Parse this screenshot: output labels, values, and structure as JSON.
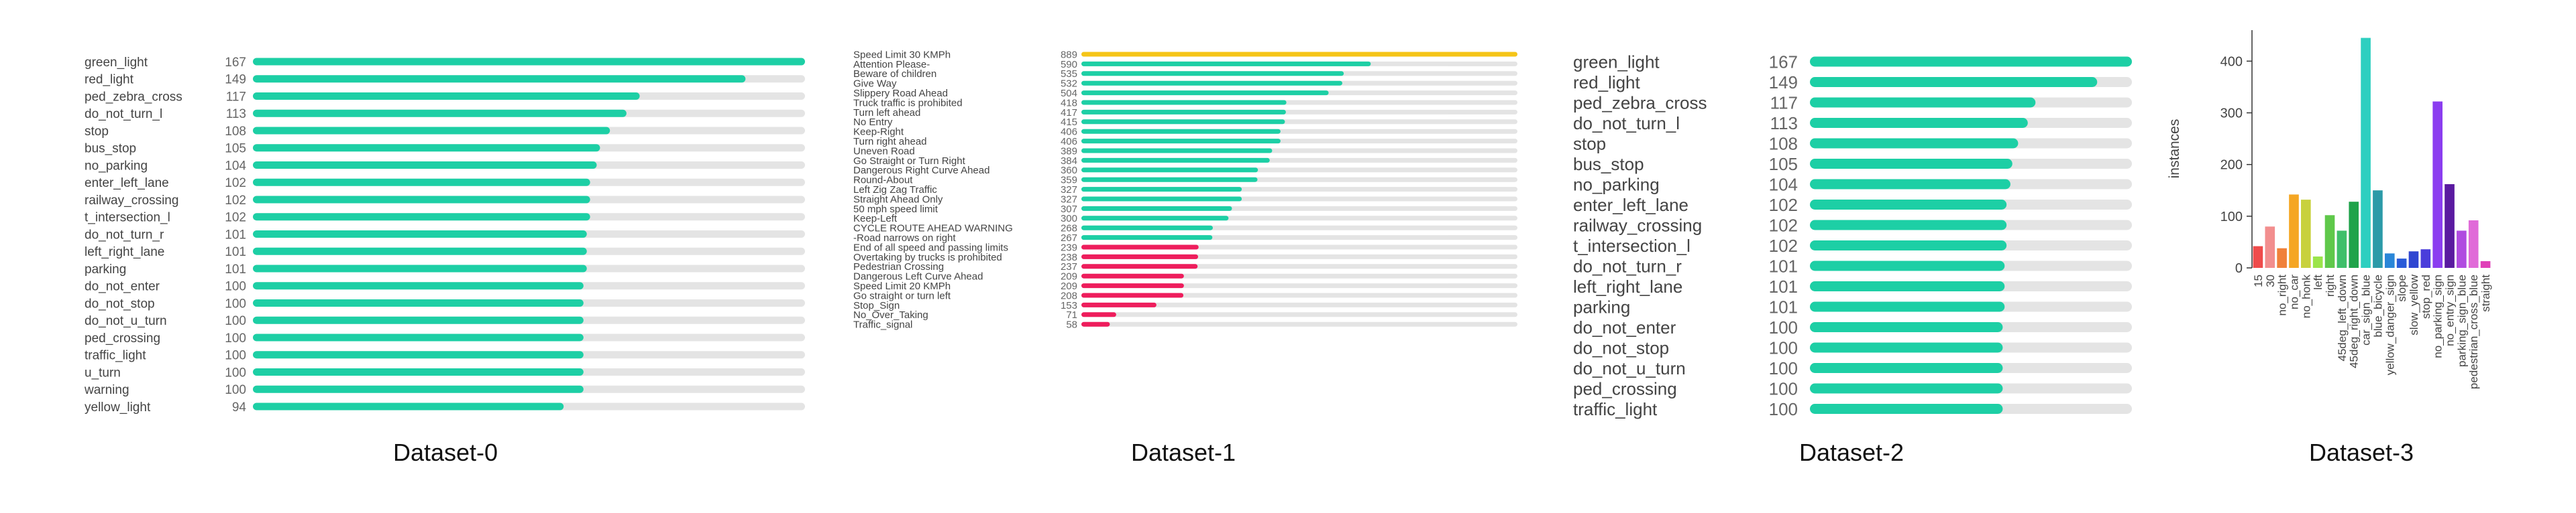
{
  "colors": {
    "teal": "#1dcfa5",
    "track": "#e4e4e4",
    "gold": "#f5c518",
    "red": "#ee1d5c"
  },
  "chart_data": [
    {
      "type": "bar",
      "orientation": "horizontal",
      "caption": "Dataset-0",
      "categories": [
        "green_light",
        "red_light",
        "ped_zebra_cross",
        "do_not_turn_l",
        "stop",
        "bus_stop",
        "no_parking",
        "enter_left_lane",
        "railway_crossing",
        "t_intersection_l",
        "do_not_turn_r",
        "left_right_lane",
        "parking",
        "do_not_enter",
        "do_not_stop",
        "do_not_u_turn",
        "ped_crossing",
        "traffic_light",
        "u_turn",
        "warning",
        "yellow_light"
      ],
      "values": [
        167,
        149,
        117,
        113,
        108,
        105,
        104,
        102,
        102,
        102,
        101,
        101,
        101,
        100,
        100,
        100,
        100,
        100,
        100,
        100,
        94
      ]
    },
    {
      "type": "bar",
      "orientation": "horizontal",
      "caption": "Dataset-1",
      "categories": [
        "Speed Limit 30 KMPh",
        "Attention Please-",
        "Beware of children",
        "Give Way",
        "Slippery Road Ahead",
        "Truck traffic is prohibited",
        "Turn left ahead",
        "No Entry",
        "Keep-Right",
        "Turn right ahead",
        "Uneven Road",
        "Go Straight or Turn Right",
        "Dangerous Right Curve Ahead",
        "Round-About",
        "Left Zig Zag Traffic",
        "Straight Ahead Only",
        "50 mph speed limit",
        "Keep-Left",
        "CYCLE ROUTE AHEAD WARNING",
        "-Road narrows on right",
        "End of all speed and passing limits",
        "Overtaking by trucks is prohibited",
        "Pedestrian Crossing",
        "Dangerous Left Curve Ahead",
        "Speed Limit 20 KMPh",
        "Go straight or turn left",
        "Stop_Sign",
        "No_Over_Taking",
        "Traffic_signal"
      ],
      "values": [
        889,
        590,
        535,
        532,
        504,
        418,
        417,
        415,
        406,
        406,
        389,
        384,
        360,
        359,
        327,
        327,
        307,
        300,
        268,
        267,
        239,
        238,
        237,
        209,
        209,
        208,
        153,
        71,
        58
      ],
      "bar_colors": [
        "gold",
        "teal",
        "teal",
        "teal",
        "teal",
        "teal",
        "teal",
        "teal",
        "teal",
        "teal",
        "teal",
        "teal",
        "teal",
        "teal",
        "teal",
        "teal",
        "teal",
        "teal",
        "teal",
        "teal",
        "red",
        "red",
        "red",
        "red",
        "red",
        "red",
        "red",
        "red",
        "red"
      ]
    },
    {
      "type": "bar",
      "orientation": "horizontal",
      "caption": "Dataset-2",
      "categories": [
        "green_light",
        "red_light",
        "ped_zebra_cross",
        "do_not_turn_l",
        "stop",
        "bus_stop",
        "no_parking",
        "enter_left_lane",
        "railway_crossing",
        "t_intersection_l",
        "do_not_turn_r",
        "left_right_lane",
        "parking",
        "do_not_enter",
        "do_not_stop",
        "do_not_u_turn",
        "ped_crossing",
        "traffic_light"
      ],
      "values": [
        167,
        149,
        117,
        113,
        108,
        105,
        104,
        102,
        102,
        102,
        101,
        101,
        101,
        100,
        100,
        100,
        100,
        100
      ]
    },
    {
      "type": "bar",
      "orientation": "vertical",
      "caption": "Dataset-3",
      "ylabel": "instances",
      "ylim": [
        0,
        460
      ],
      "yticks": [
        0,
        100,
        200,
        300,
        400
      ],
      "categories": [
        "15",
        "30",
        "no_right",
        "no_car",
        "no_honk",
        "left",
        "right",
        "45deg_left_down",
        "45deg_right_down",
        "car_sign_blue",
        "blue_bicycle",
        "yellow_danger_sign",
        "slope",
        "slow_yellow",
        "stop_red",
        "no_parking_sign",
        "no_entry_sign",
        "parking_sign_blue",
        "pedestrian_cross_blue",
        "straight"
      ],
      "values": [
        42,
        80,
        38,
        142,
        132,
        22,
        102,
        72,
        128,
        445,
        150,
        28,
        18,
        32,
        36,
        322,
        162,
        72,
        92,
        13
      ],
      "bar_colors": [
        "#ef4b4b",
        "#f28e8e",
        "#f0813a",
        "#f5a623",
        "#c8d13d",
        "#9be44a",
        "#5fc84a",
        "#3fbf6a",
        "#1fa34a",
        "#2ecfc0",
        "#2b9aa8",
        "#2a86d8",
        "#2a5bd8",
        "#2f46d1",
        "#4a3ddb",
        "#8b3df0",
        "#5a1aa0",
        "#b04be0",
        "#e06ad8",
        "#e040b8"
      ]
    }
  ]
}
